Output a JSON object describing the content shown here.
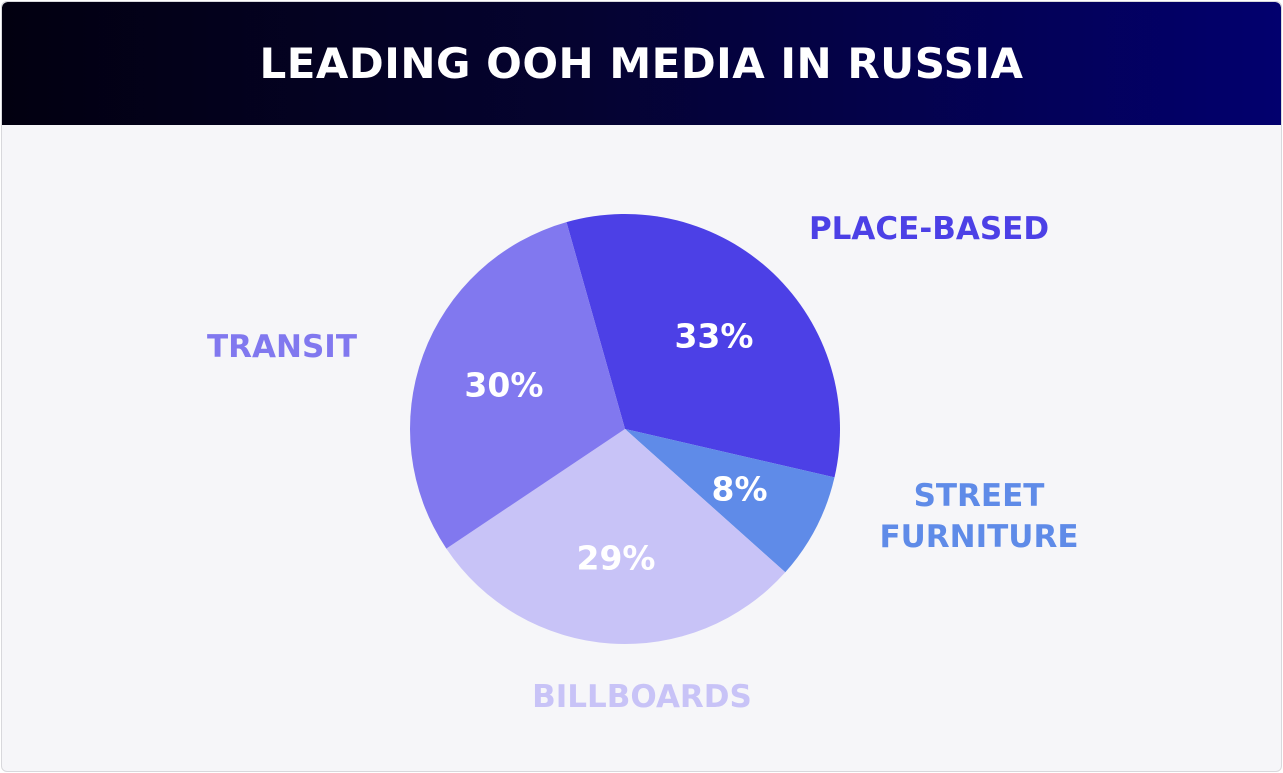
{
  "chart_data": {
    "type": "pie",
    "title": "LEADING OOH MEDIA IN RUSSIA",
    "slices": [
      {
        "label": "PLACE-BASED",
        "value": 33,
        "display": "33%",
        "color": "#4c40e6"
      },
      {
        "label": "STREET FURNITURE",
        "value": 8,
        "display": "8%",
        "color": "#5f8be8"
      },
      {
        "label": "BILLBOARDS",
        "value": 29,
        "display": "29%",
        "color": "#c8c3f7"
      },
      {
        "label": "TRANSIT",
        "value": 30,
        "display": "30%",
        "color": "#8178ef"
      }
    ]
  }
}
